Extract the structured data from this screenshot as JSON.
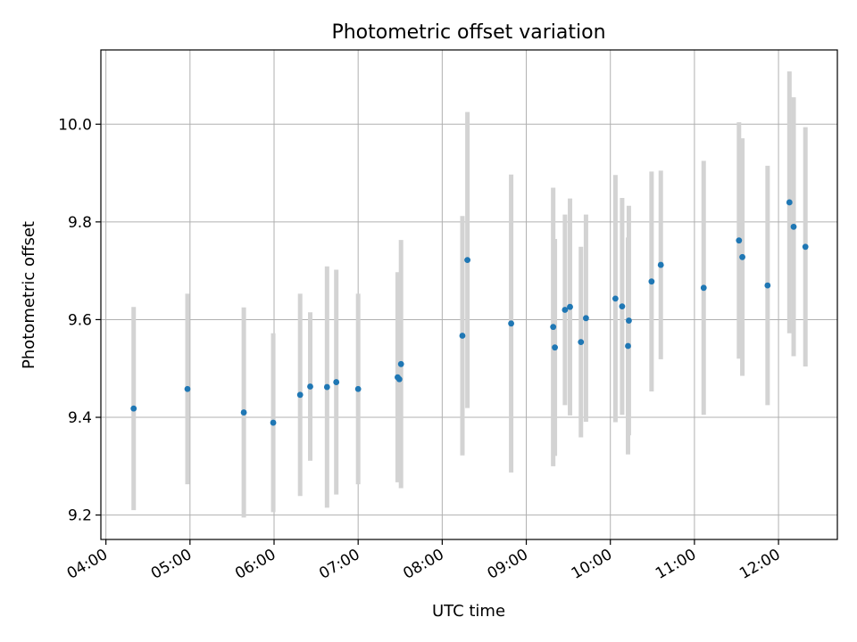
{
  "chart_data": {
    "type": "scatter",
    "title": "Photometric offset variation",
    "xlabel": "UTC time",
    "ylabel": "Photometric offset",
    "x_unit": "hours UTC",
    "xlim": [
      3.94,
      12.7
    ],
    "ylim": [
      9.15,
      10.152
    ],
    "x_ticks": [
      {
        "value": 4,
        "label": "04:00"
      },
      {
        "value": 5,
        "label": "05:00"
      },
      {
        "value": 6,
        "label": "06:00"
      },
      {
        "value": 7,
        "label": "07:00"
      },
      {
        "value": 8,
        "label": "08:00"
      },
      {
        "value": 9,
        "label": "09:00"
      },
      {
        "value": 10,
        "label": "10:00"
      },
      {
        "value": 11,
        "label": "11:00"
      },
      {
        "value": 12,
        "label": "12:00"
      }
    ],
    "y_ticks": [
      {
        "value": 9.2,
        "label": "9.2"
      },
      {
        "value": 9.4,
        "label": "9.4"
      },
      {
        "value": 9.6,
        "label": "9.6"
      },
      {
        "value": 9.8,
        "label": "9.8"
      },
      {
        "value": 10.0,
        "label": "10.0"
      }
    ],
    "grid": true,
    "point_color": "#1f77b4",
    "errorbar_color": "#d3d3d3",
    "points": [
      {
        "x": 4.33,
        "y": 9.418,
        "err": 0.208
      },
      {
        "x": 4.97,
        "y": 9.458,
        "err": 0.195
      },
      {
        "x": 5.64,
        "y": 9.41,
        "err": 0.215
      },
      {
        "x": 5.99,
        "y": 9.389,
        "err": 0.183
      },
      {
        "x": 6.31,
        "y": 9.446,
        "err": 0.207
      },
      {
        "x": 6.43,
        "y": 9.463,
        "err": 0.152
      },
      {
        "x": 6.63,
        "y": 9.462,
        "err": 0.247
      },
      {
        "x": 6.74,
        "y": 9.472,
        "err": 0.23
      },
      {
        "x": 7.0,
        "y": 9.458,
        "err": 0.195
      },
      {
        "x": 7.47,
        "y": 9.482,
        "err": 0.215
      },
      {
        "x": 7.49,
        "y": 9.478,
        "err": 0.197
      },
      {
        "x": 7.51,
        "y": 9.509,
        "err": 0.254
      },
      {
        "x": 8.24,
        "y": 9.567,
        "err": 0.245
      },
      {
        "x": 8.3,
        "y": 9.722,
        "err": 0.303
      },
      {
        "x": 8.82,
        "y": 9.592,
        "err": 0.305
      },
      {
        "x": 9.32,
        "y": 9.585,
        "err": 0.285
      },
      {
        "x": 9.34,
        "y": 9.543,
        "err": 0.222
      },
      {
        "x": 9.46,
        "y": 9.62,
        "err": 0.195
      },
      {
        "x": 9.52,
        "y": 9.626,
        "err": 0.222
      },
      {
        "x": 9.65,
        "y": 9.554,
        "err": 0.195
      },
      {
        "x": 9.71,
        "y": 9.603,
        "err": 0.212
      },
      {
        "x": 10.06,
        "y": 9.643,
        "err": 0.253
      },
      {
        "x": 10.14,
        "y": 9.627,
        "err": 0.222
      },
      {
        "x": 10.21,
        "y": 9.546,
        "err": 0.222
      },
      {
        "x": 10.22,
        "y": 9.598,
        "err": 0.235
      },
      {
        "x": 10.49,
        "y": 9.678,
        "err": 0.225
      },
      {
        "x": 10.6,
        "y": 9.712,
        "err": 0.193
      },
      {
        "x": 11.11,
        "y": 9.665,
        "err": 0.26
      },
      {
        "x": 11.53,
        "y": 9.762,
        "err": 0.242
      },
      {
        "x": 11.57,
        "y": 9.728,
        "err": 0.243
      },
      {
        "x": 11.87,
        "y": 9.67,
        "err": 0.245
      },
      {
        "x": 12.13,
        "y": 9.84,
        "err": 0.268
      },
      {
        "x": 12.18,
        "y": 9.79,
        "err": 0.265
      },
      {
        "x": 12.32,
        "y": 9.749,
        "err": 0.245
      }
    ]
  }
}
